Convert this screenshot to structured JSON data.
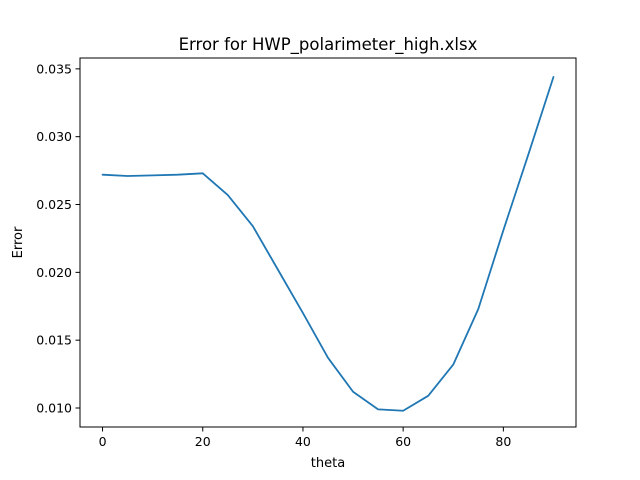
{
  "chart_data": {
    "type": "line",
    "title": "Error for HWP_polarimeter_high.xlsx",
    "xlabel": "theta",
    "ylabel": "Error",
    "xlim": [
      -4.5,
      94.5
    ],
    "ylim": [
      0.0086,
      0.0358
    ],
    "xticks": [
      0,
      20,
      40,
      60,
      80
    ],
    "xtick_labels": [
      "0",
      "20",
      "40",
      "60",
      "80"
    ],
    "yticks": [
      0.01,
      0.015,
      0.02,
      0.025,
      0.03,
      0.035
    ],
    "ytick_labels": [
      "0.010",
      "0.015",
      "0.020",
      "0.025",
      "0.030",
      "0.035"
    ],
    "grid": false,
    "series": [
      {
        "color": "#1f77b4",
        "x": [
          0,
          5,
          10,
          15,
          20,
          25,
          30,
          35,
          40,
          45,
          50,
          55,
          60,
          65,
          70,
          75,
          80,
          85,
          90
        ],
        "y": [
          0.0272,
          0.0271,
          0.02715,
          0.0272,
          0.0273,
          0.0257,
          0.0234,
          0.0202,
          0.017,
          0.0137,
          0.0112,
          0.0099,
          0.0098,
          0.0109,
          0.0132,
          0.0173,
          0.0231,
          0.0287,
          0.0344
        ]
      }
    ]
  }
}
